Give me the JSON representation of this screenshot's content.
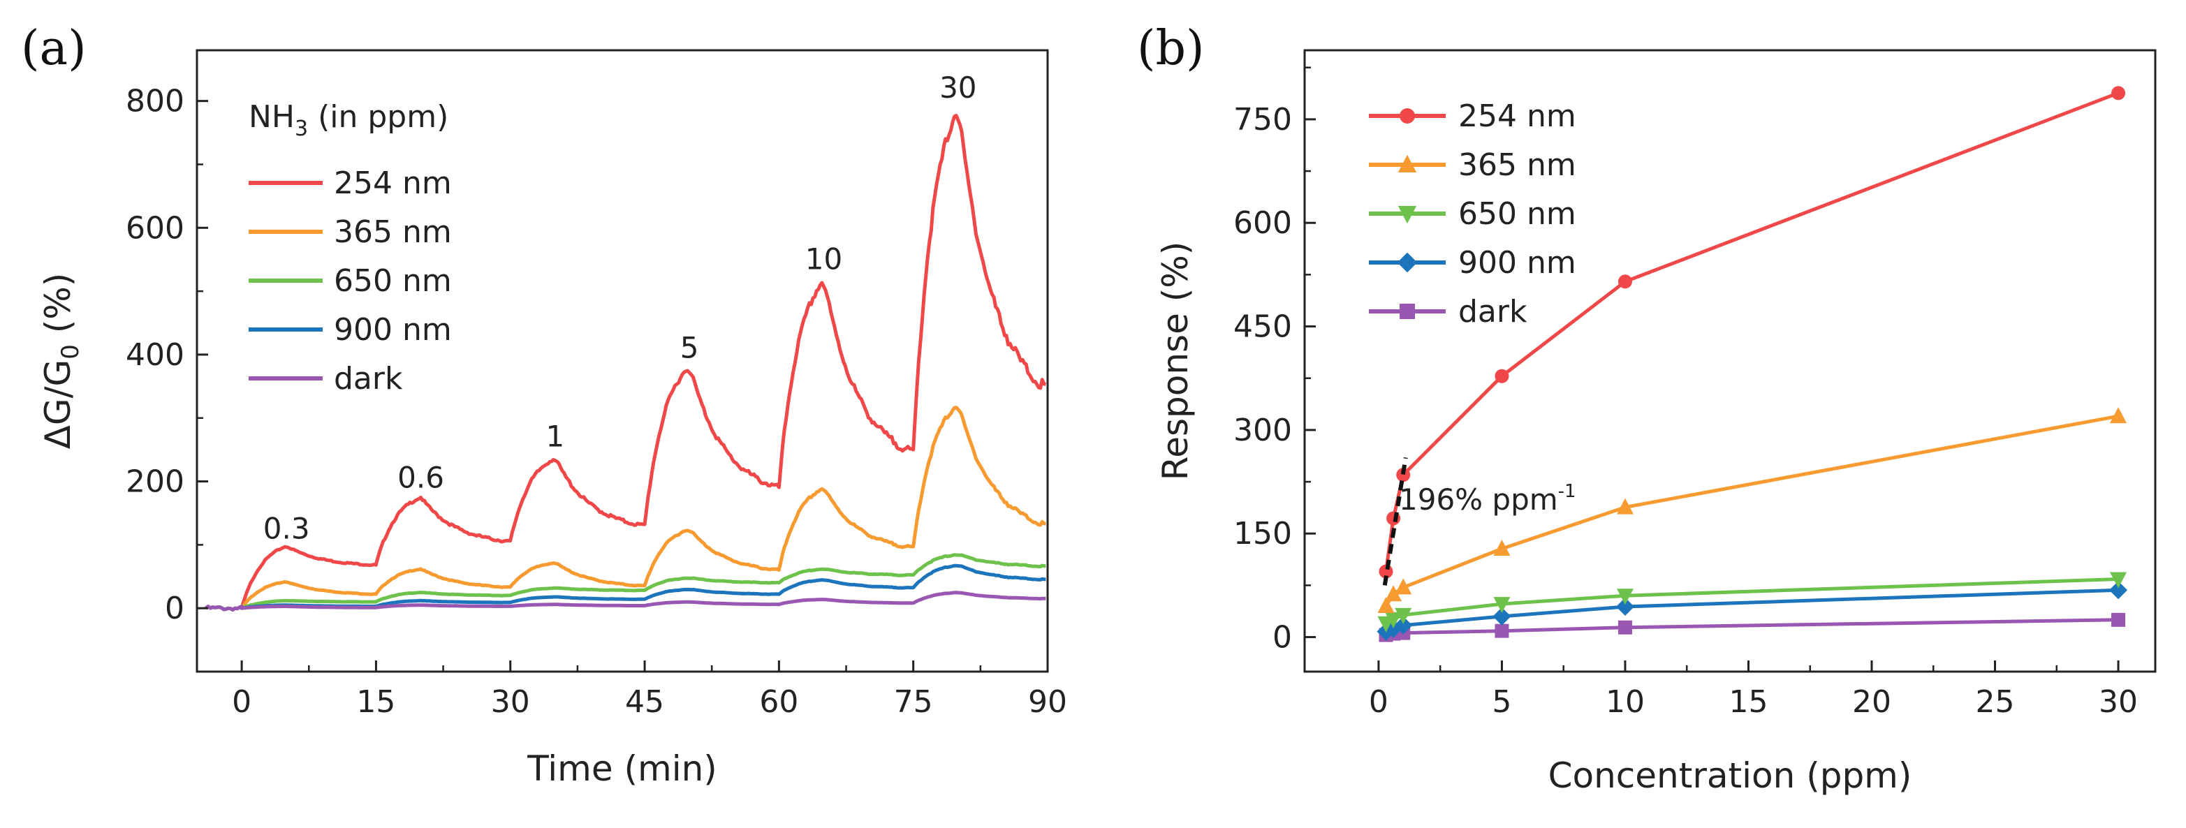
{
  "chart_data": [
    {
      "type": "line",
      "panel_label": "(a)",
      "xlabel": "Time (min)",
      "ylabel_parts": [
        "ΔG/G",
        "0",
        " (%)"
      ],
      "xlim": [
        -5,
        90
      ],
      "ylim": [
        -100,
        880
      ],
      "xticks": [
        "0",
        "15",
        "30",
        "45",
        "60",
        "75",
        "90"
      ],
      "yticks": [
        "0",
        "200",
        "400",
        "600",
        "800"
      ],
      "legend": {
        "title_parts": [
          "NH",
          "3",
          " (in ppm)"
        ],
        "position": "top-left",
        "entries": [
          "254 nm",
          "365 nm",
          "650 nm",
          "900 nm",
          "dark"
        ]
      },
      "annotations": [
        "0.3",
        "0.6",
        "1",
        "5",
        "10",
        "30"
      ],
      "annotation_x": [
        5,
        20,
        35,
        50,
        65,
        80
      ],
      "annotation_y": [
        110,
        190,
        255,
        395,
        535,
        805
      ],
      "pulse_starts": [
        0,
        15,
        30,
        45,
        60,
        75
      ],
      "pulse_length": 5,
      "series": [
        {
          "name": "254 nm",
          "color": "#f04848",
          "baseline": 0,
          "peaks": [
            98,
            175,
            237,
            382,
            518,
            790
          ],
          "ends": [
            68,
            105,
            130,
            190,
            245,
            345
          ]
        },
        {
          "name": "365 nm",
          "color": "#f79a30",
          "baseline": 0,
          "peaks": [
            42,
            62,
            72,
            125,
            190,
            322
          ],
          "ends": [
            22,
            33,
            35,
            60,
            95,
            130
          ]
        },
        {
          "name": "650 nm",
          "color": "#6cc24a",
          "baseline": 0,
          "peaks": [
            12,
            25,
            32,
            48,
            62,
            85
          ],
          "ends": [
            10,
            20,
            28,
            40,
            52,
            66
          ]
        },
        {
          "name": "900 nm",
          "color": "#1c74bc",
          "baseline": 0,
          "peaks": [
            5,
            12,
            18,
            30,
            45,
            68
          ],
          "ends": [
            3,
            9,
            14,
            22,
            32,
            45
          ]
        },
        {
          "name": "dark",
          "color": "#9a57b2",
          "baseline": 0,
          "peaks": [
            3,
            5,
            6,
            10,
            14,
            25
          ],
          "ends": [
            1,
            3,
            4,
            6,
            8,
            15
          ]
        }
      ]
    },
    {
      "type": "line",
      "panel_label": "(b)",
      "xlabel": "Concentration (ppm)",
      "ylabel": "Response (%)",
      "xlim": [
        -3,
        31.5
      ],
      "ylim": [
        -50,
        850
      ],
      "xticks": [
        "0",
        "5",
        "10",
        "15",
        "20",
        "25",
        "30"
      ],
      "yticks": [
        "0",
        "150",
        "300",
        "450",
        "600",
        "750"
      ],
      "x": [
        0.3,
        0.6,
        1,
        5,
        10,
        30
      ],
      "legend": {
        "position": "top-left",
        "entries": [
          "254 nm",
          "365 nm",
          "650 nm",
          "900 nm",
          "dark"
        ]
      },
      "series": [
        {
          "name": "254 nm",
          "color": "#f04848",
          "marker": "circle",
          "values": [
            95,
            172,
            235,
            378,
            515,
            788
          ]
        },
        {
          "name": "365 nm",
          "color": "#f79a30",
          "marker": "triangle-up",
          "values": [
            45,
            62,
            72,
            128,
            188,
            320
          ]
        },
        {
          "name": "650 nm",
          "color": "#6cc24a",
          "marker": "triangle-down",
          "values": [
            20,
            26,
            32,
            48,
            60,
            84
          ]
        },
        {
          "name": "900 nm",
          "color": "#1c74bc",
          "marker": "diamond",
          "values": [
            8,
            12,
            17,
            30,
            44,
            68
          ]
        },
        {
          "name": "dark",
          "color": "#9a57b2",
          "marker": "square",
          "values": [
            3,
            5,
            6,
            9,
            14,
            25
          ]
        }
      ],
      "fit_line": {
        "label": "196% ppm",
        "label_sup": "-1",
        "x": [
          0.25,
          1.1
        ],
        "y": [
          75,
          260
        ],
        "style": "dashed",
        "color": "#111111"
      }
    }
  ]
}
